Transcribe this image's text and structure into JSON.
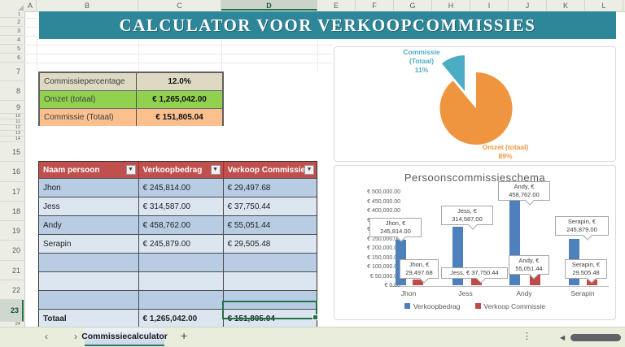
{
  "chrome": {
    "column_headers": [
      "A",
      "B",
      "C",
      "D",
      "E",
      "F",
      "G",
      "H",
      "I",
      "J",
      "K",
      "L"
    ],
    "row_headers": [
      "1",
      "2",
      "3",
      "4",
      "5",
      "6",
      "7",
      "8",
      "9",
      "10",
      "11",
      "12",
      "13",
      "14",
      "15",
      "16",
      "17",
      "18",
      "19",
      "20",
      "21",
      "22",
      "23",
      "24"
    ],
    "selected_column": "D",
    "selected_row": "23",
    "sheet_tab_label": "Commissiecalculator",
    "new_sheet_label": "+",
    "nav_prev": "‹",
    "nav_next": "›",
    "more_icon": "⋮",
    "scroll_left_arrow": "◀"
  },
  "banner": {
    "text": "CALCULATOR VOOR VERKOOPCOMMISSIES",
    "bg_color": "#2E8699"
  },
  "summary_table": {
    "rows": [
      {
        "label": "Commissiepercentage",
        "value": "12.0%",
        "bg": "#DDD9C3"
      },
      {
        "label": "Omzet (totaal)",
        "value": "€ 1,265,042.00",
        "bg": "#92D050"
      },
      {
        "label": "Commissie (Totaal)",
        "value": "€ 151,805.04",
        "bg": "#FBC08E"
      }
    ]
  },
  "data_table": {
    "headers": [
      "Naam persoon",
      "Verkoopbedrag",
      "Verkoop Commissie"
    ],
    "rows": [
      [
        "Jhon",
        "€ 245,814.00",
        "€ 29,497.68"
      ],
      [
        "Jess",
        "€ 314,587.00",
        "€ 37,750.44"
      ],
      [
        "Andy",
        "€ 458,762.00",
        "€ 55,051.44"
      ],
      [
        "Serapin",
        "€ 245,879.00",
        "€ 29,505.48"
      ],
      [
        "",
        "",
        ""
      ],
      [
        "",
        "",
        ""
      ],
      [
        "",
        "",
        ""
      ]
    ],
    "total_row": [
      "Totaal",
      "€ 1,265,042.00",
      "€ 151,805.04"
    ],
    "header_bg": "#C0504D",
    "row_dark_bg": "#B8CCE4",
    "row_light_bg": "#DCE6F1",
    "selection_color": "#217346"
  },
  "chart_data": [
    {
      "type": "pie",
      "slices": [
        {
          "name": "Omzet (totaal)",
          "pct": "89%",
          "value": 89,
          "color": "#F0953F",
          "exploded": false
        },
        {
          "name": "Commissie (Totaal)",
          "pct": "11%",
          "value": 11,
          "color": "#4BACC6",
          "exploded": true
        }
      ],
      "title": "",
      "legend_position": "none"
    },
    {
      "type": "bar",
      "title": "Persoonscommissieschema",
      "categories": [
        "Jhon",
        "Jess",
        "Andy",
        "Serapin"
      ],
      "series": [
        {
          "name": "Verkoopbedrag",
          "color": "#4E80BC",
          "values": [
            245814.0,
            314587.0,
            458762.0,
            245879.0
          ],
          "data_labels": [
            "Jhon, € 245,814.00",
            "Jess, € 314,587.00",
            "Andy, € 458,762.00",
            "Serapin, € 245,879.00"
          ]
        },
        {
          "name": "Verkoop Commissie",
          "color": "#BE4B48",
          "values": [
            29497.68,
            37750.44,
            55051.44,
            29505.48
          ],
          "data_labels": [
            "Jhon, € 29,497.68",
            "Jess, € 37,750.44",
            "Andy, € 55,051.44",
            "Serapin, € 29,505.48"
          ]
        }
      ],
      "y_ticks": [
        "€ 500,000.00",
        "€ 450,000.00",
        "€ 400,000.00",
        "€ 350,000.00",
        "€ 300,000.00",
        "€ 250,000.00",
        "€ 200,000.00",
        "€ 150,000.00",
        "€ 100,000.00",
        "€ 50,000.00",
        "€ 0.00"
      ],
      "ylim": [
        0,
        500000
      ],
      "grid": false,
      "legend_position": "bottom"
    }
  ]
}
